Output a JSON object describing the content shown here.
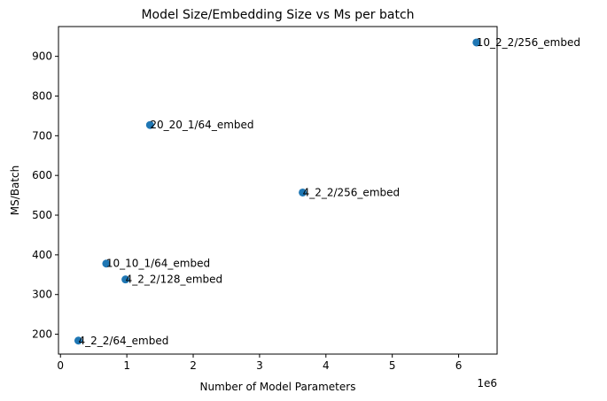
{
  "chart_data": {
    "type": "scatter",
    "title": "Model Size/Embedding Size vs Ms per batch",
    "xlabel": "Number of Model Parameters",
    "ylabel": "MS/Batch",
    "x_offset_text": "1e6",
    "xlim": [
      -0.03,
      6.58
    ],
    "ylim": [
      150,
      975
    ],
    "x_ticks": [
      0,
      1,
      2,
      3,
      4,
      5,
      6
    ],
    "x_tick_labels": [
      "0",
      "1",
      "2",
      "3",
      "4",
      "5",
      "6"
    ],
    "y_ticks": [
      200,
      300,
      400,
      500,
      600,
      700,
      800,
      900
    ],
    "y_tick_labels": [
      "200",
      "300",
      "400",
      "500",
      "600",
      "700",
      "800",
      "900"
    ],
    "grid": false,
    "marker_color": "#1f77b4",
    "points": [
      {
        "label": "10_2_2/256_embed",
        "x": 6.27,
        "y": 935
      },
      {
        "label": "20_20_1/64_embed",
        "x": 1.35,
        "y": 727
      },
      {
        "label": "4_2_2/256_embed",
        "x": 3.65,
        "y": 557
      },
      {
        "label": "10_10_1/64_embed",
        "x": 0.69,
        "y": 378
      },
      {
        "label": "4_2_2/128_embed",
        "x": 0.98,
        "y": 338
      },
      {
        "label": "4_2_2/64_embed",
        "x": 0.27,
        "y": 184
      }
    ]
  }
}
